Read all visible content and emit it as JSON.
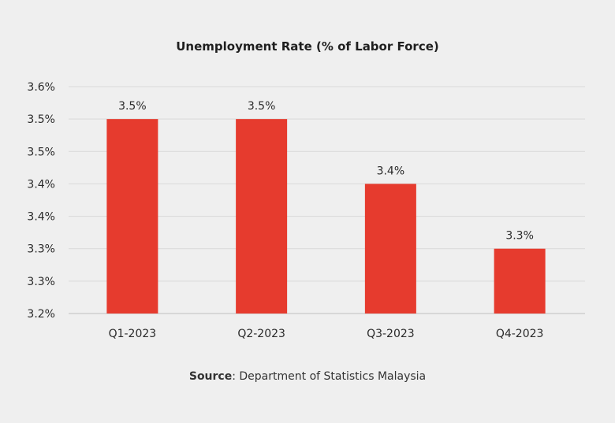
{
  "chart_data": {
    "type": "bar",
    "title": "Unemployment Rate (% of Labor Force)",
    "categories": [
      "Q1-2023",
      "Q2-2023",
      "Q3-2023",
      "Q4-2023"
    ],
    "values": [
      3.5,
      3.5,
      3.4,
      3.3
    ],
    "value_labels": [
      "3.5%",
      "3.5%",
      "3.4%",
      "3.3%"
    ],
    "y_tick_labels": [
      "3.2%",
      "3.3%",
      "3.3%",
      "3.4%",
      "3.4%",
      "3.5%",
      "3.5%",
      "3.6%"
    ],
    "ylim": [
      3.2,
      3.55
    ],
    "grid": true,
    "bar_color": "#e63b2e",
    "xlabel": "",
    "ylabel": ""
  },
  "source": {
    "label": "Source",
    "text": ": Department of Statistics Malaysia"
  }
}
